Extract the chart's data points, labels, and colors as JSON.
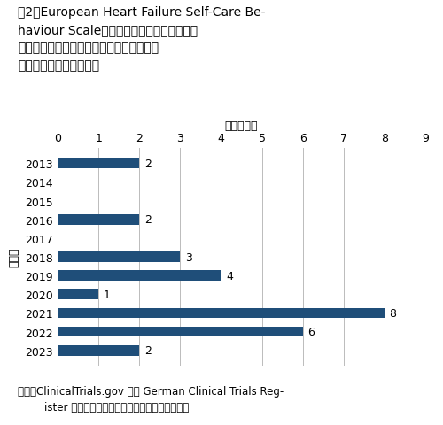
{
  "years": [
    "2013",
    "2014",
    "2015",
    "2016",
    "2017",
    "2018",
    "2019",
    "2020",
    "2021",
    "2022",
    "2023"
  ],
  "values": [
    2,
    0,
    0,
    2,
    0,
    3,
    4,
    1,
    8,
    6,
    2
  ],
  "bar_color": "#1F4E79",
  "xlim": [
    0,
    9
  ],
  "xticks": [
    0,
    1,
    2,
    3,
    4,
    5,
    6,
    7,
    8,
    9
  ],
  "xlabel": "臨床試験数",
  "ylabel": "登録年",
  "title_l1": "図2　European Heart Failure Self-Care Be-",
  "title_l2": "haviour Scale（ガイドラインや認知された",
  "title_l3": "治療基準との整合に関連するアウトカム）",
  "title_l4": "を含む臨床試験数の推移",
  "source_l1": "出所：ClinicalTrials.gov 及び German Clinical Trials Reg-",
  "source_l2": "        ister の情報をもとに医薬産業政策研究所で作成",
  "background_color": "#ffffff",
  "grid_color": "#bbbbbb",
  "bar_height": 0.55
}
